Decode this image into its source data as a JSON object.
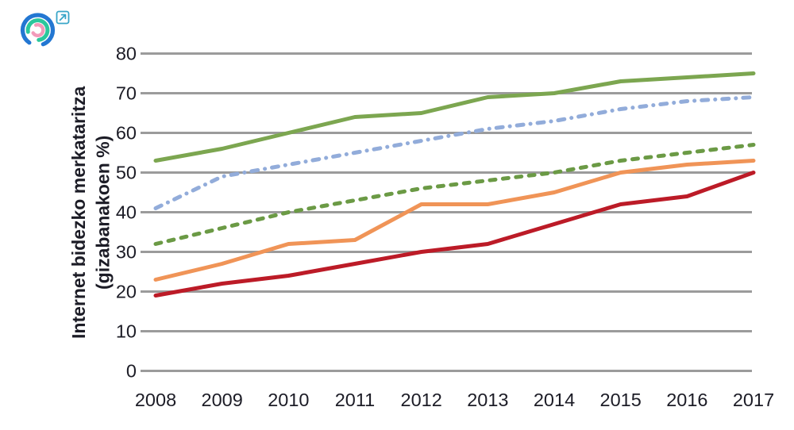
{
  "page": {
    "background": "#ffffff"
  },
  "logo": {
    "outer_arc_color": "#2377d2",
    "middle_arc_color": "#2bc79c",
    "inner_arc_color": "#f29ab9",
    "link_icon_color": "#38a5c8"
  },
  "chart_data": {
    "type": "line",
    "title": "",
    "ylabel": "Internet bidezko merkataritza (gizabanakoen %)",
    "ylabel_line1": "Internet bidezko merkataritza",
    "ylabel_line2": "(gizabanakoen %)",
    "x": [
      "2008",
      "2009",
      "2010",
      "2011",
      "2012",
      "2013",
      "2014",
      "2015",
      "2016",
      "2017"
    ],
    "yticks": [
      "0",
      "10",
      "20",
      "30",
      "40",
      "50",
      "60",
      "70",
      "80"
    ],
    "ylim": [
      0,
      80
    ],
    "grid": "horizontal-only",
    "legend_position": "none",
    "axis": {
      "grid_color": "#9b9b9b",
      "tick_color": "#9b9b9b",
      "text_color": "#1c1c26"
    },
    "series": [
      {
        "name": "green-solid-line",
        "style": "solid",
        "color": "#7ca650",
        "values": [
          53,
          56,
          60,
          64,
          65,
          69,
          70,
          73,
          74,
          75
        ]
      },
      {
        "name": "blue-dash-dot-line",
        "style": "dash-dot",
        "color": "#92acda",
        "values": [
          41,
          49,
          52,
          55,
          58,
          61,
          63,
          66,
          68,
          69
        ]
      },
      {
        "name": "green-dashed-line",
        "style": "dashed",
        "color": "#6b9a45",
        "values": [
          32,
          36,
          40,
          43,
          46,
          48,
          50,
          53,
          55,
          57
        ]
      },
      {
        "name": "orange-solid-line",
        "style": "solid",
        "color": "#f09457",
        "values": [
          23,
          27,
          32,
          33,
          42,
          42,
          45,
          50,
          52,
          53
        ]
      },
      {
        "name": "dark-red-solid-line",
        "style": "solid",
        "color": "#bc1b27",
        "values": [
          19,
          22,
          24,
          27,
          30,
          32,
          37,
          42,
          44,
          50
        ]
      }
    ]
  }
}
